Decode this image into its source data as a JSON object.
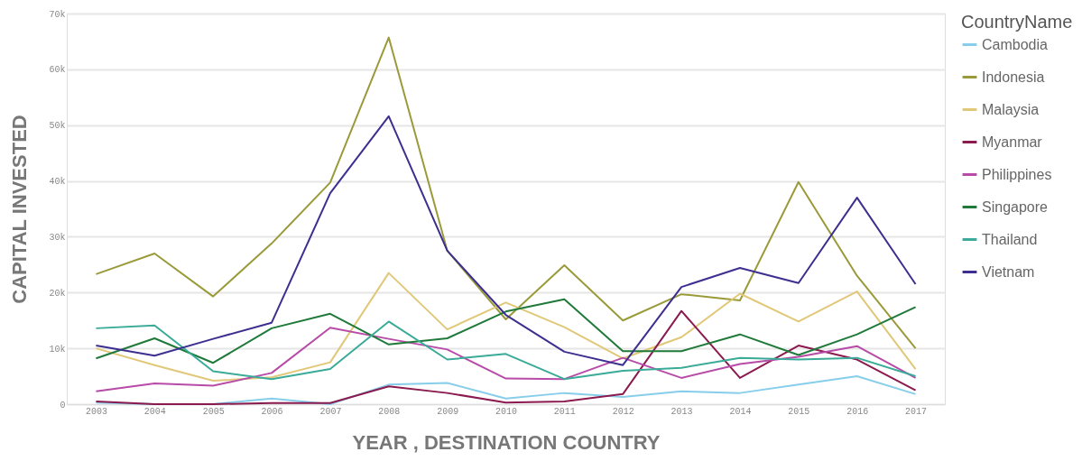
{
  "chart_data": {
    "type": "line",
    "xlabel": "YEAR , DESTINATION COUNTRY",
    "ylabel": "CAPITAL INVESTED",
    "legend_title": "CountryName",
    "categories": [
      "2003",
      "2004",
      "2005",
      "2006",
      "2007",
      "2008",
      "2009",
      "2010",
      "2011",
      "2012",
      "2013",
      "2014",
      "2015",
      "2016",
      "2017"
    ],
    "series": [
      {
        "name": "Cambodia",
        "color": "#87ceeb",
        "values": [
          300,
          0,
          0,
          1000,
          0,
          3500,
          3800,
          1000,
          2000,
          1300,
          2300,
          2000,
          3500,
          5000,
          1800
        ]
      },
      {
        "name": "Indonesia",
        "color": "#9a9a3a",
        "values": [
          23300,
          27000,
          19300,
          28800,
          39700,
          65700,
          27500,
          15200,
          24900,
          15000,
          19700,
          18600,
          39800,
          23000,
          10000
        ]
      },
      {
        "name": "Malaysia",
        "color": "#e0c878",
        "values": [
          10000,
          7000,
          4200,
          4800,
          7500,
          23500,
          13400,
          18200,
          13800,
          8200,
          12000,
          19800,
          14800,
          20200,
          6300
        ]
      },
      {
        "name": "Myanmar",
        "color": "#8b1a4f",
        "values": [
          500,
          0,
          0,
          200,
          200,
          3200,
          2000,
          300,
          500,
          1800,
          16700,
          4700,
          10500,
          8000,
          2500
        ]
      },
      {
        "name": "Philippines",
        "color": "#b84ba8",
        "values": [
          2300,
          3700,
          3300,
          5600,
          13700,
          11700,
          9800,
          4600,
          4500,
          8300,
          4700,
          7200,
          8500,
          10400,
          4700
        ]
      },
      {
        "name": "Singapore",
        "color": "#1f7a3a",
        "values": [
          8200,
          11800,
          7400,
          13600,
          16200,
          10700,
          11800,
          16600,
          18800,
          9500,
          9500,
          12500,
          8800,
          12500,
          17400
        ]
      },
      {
        "name": "Thailand",
        "color": "#3aab98",
        "values": [
          13600,
          14100,
          5900,
          4500,
          6300,
          14800,
          8000,
          9000,
          4500,
          6000,
          6500,
          8300,
          8000,
          8300,
          5000
        ]
      },
      {
        "name": "Vietnam",
        "color": "#3d2f90",
        "values": [
          10500,
          8700,
          11700,
          14600,
          37800,
          51600,
          27500,
          16000,
          9400,
          7000,
          21000,
          24400,
          21700,
          37000,
          21500
        ]
      }
    ],
    "ylim": [
      0,
      70000
    ],
    "yticks": [
      0,
      {
        "value": 10000,
        "label": "10k"
      },
      {
        "value": 20000,
        "label": "20k"
      },
      {
        "value": 30000,
        "label": "30k"
      },
      {
        "value": 40000,
        "label": "40k"
      },
      {
        "value": 50000,
        "label": "50k"
      },
      {
        "value": 60000,
        "label": "60k"
      },
      {
        "value": 70000,
        "label": "70k"
      }
    ],
    "grid": "y",
    "legend": "right",
    "marker": "none",
    "line_style": "solid"
  }
}
